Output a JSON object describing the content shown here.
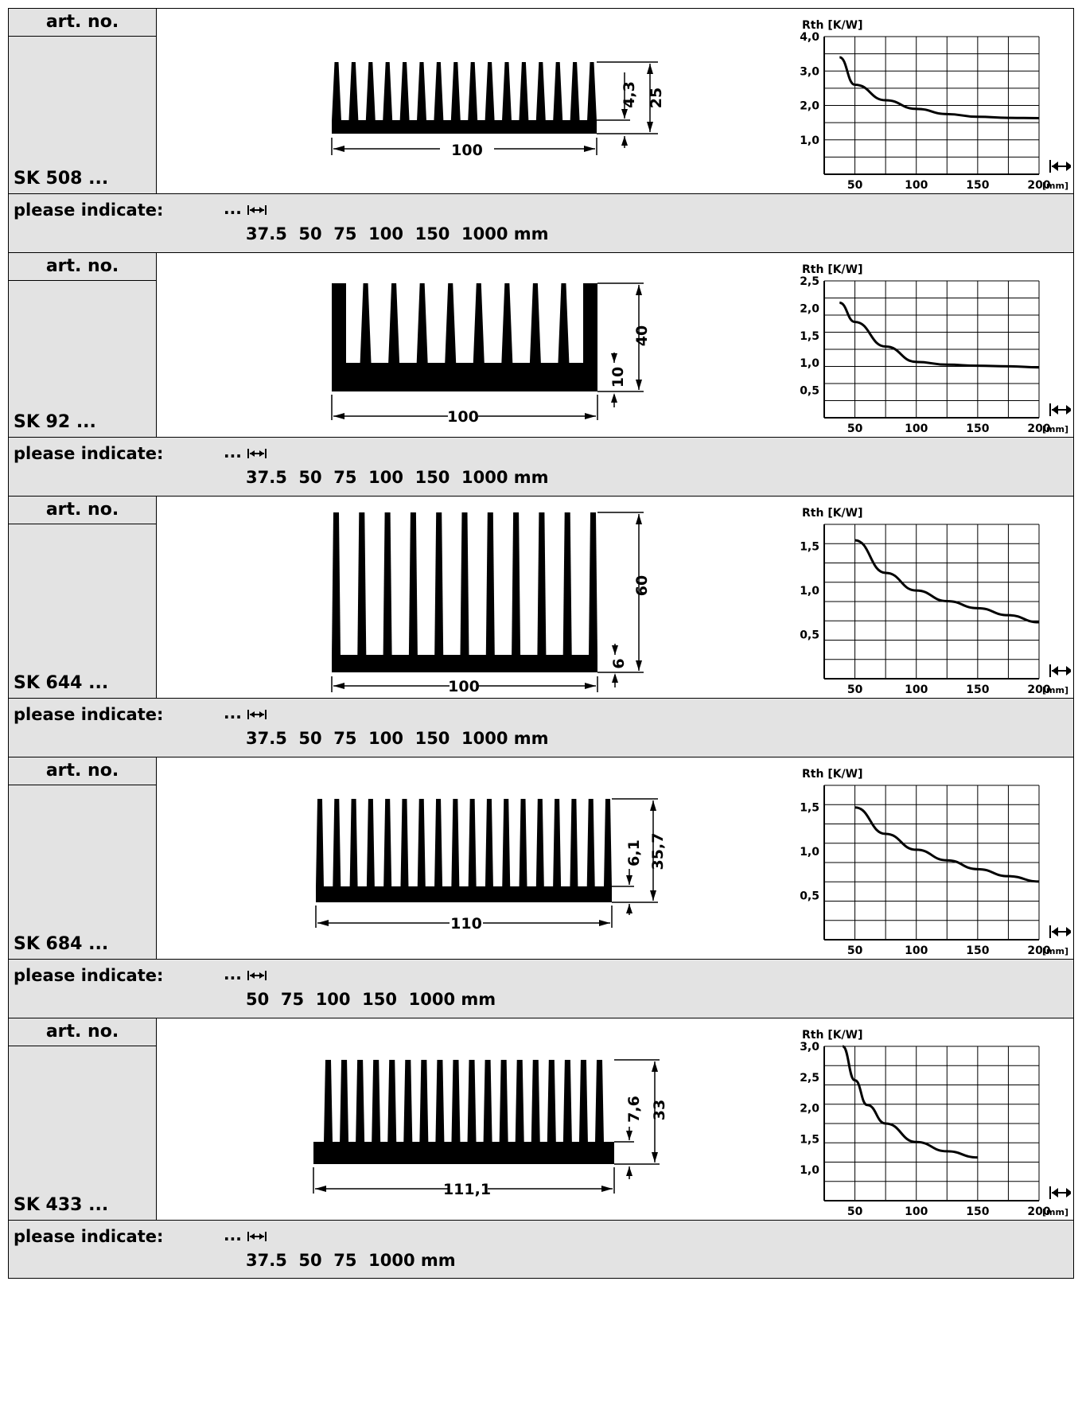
{
  "labels": {
    "art_no": "art. no.",
    "please_indicate": "please indicate:",
    "dots": "..."
  },
  "products": [
    {
      "code": "SK 508 ...",
      "drawing": {
        "fins": 16,
        "width": "100",
        "height": "25",
        "base": "4,3"
      },
      "sizes": "37.5  50  75  100  150  1000 mm",
      "chart_data": {
        "type": "line",
        "ylabel": "Rth [K/W]",
        "xunit": "[mm]",
        "x_ticks": [
          "50",
          "100",
          "150",
          "200"
        ],
        "y_ticks": [
          "1,0",
          "2,0",
          "3,0",
          "4,0"
        ],
        "xlim": [
          25,
          200
        ],
        "ylim": [
          0,
          4.0
        ],
        "series": [
          {
            "x": [
              37.5,
              50,
              75,
              100,
              125,
              150,
              175,
              200
            ],
            "y": [
              3.4,
              2.6,
              2.15,
              1.9,
              1.75,
              1.67,
              1.64,
              1.63
            ]
          }
        ]
      }
    },
    {
      "code": "SK 92 ...",
      "drawing": {
        "fins": 10,
        "width": "100",
        "height": "40",
        "base": "10"
      },
      "sizes": "37.5  50  75  100  150  1000 mm",
      "chart_data": {
        "type": "line",
        "ylabel": "Rth [K/W]",
        "xunit": "[mm]",
        "x_ticks": [
          "50",
          "100",
          "150",
          "200"
        ],
        "y_ticks": [
          "0,5",
          "1,0",
          "1,5",
          "2,0",
          "2,5"
        ],
        "xlim": [
          25,
          200
        ],
        "ylim": [
          0,
          2.5
        ],
        "series": [
          {
            "x": [
              37.5,
              50,
              75,
              100,
              125,
              150,
              175,
              200
            ],
            "y": [
              2.1,
              1.75,
              1.3,
              1.02,
              0.97,
              0.95,
              0.94,
              0.92
            ]
          }
        ]
      }
    },
    {
      "code": "SK 644 ...",
      "drawing": {
        "fins": 11,
        "width": "100",
        "height": "60",
        "base": "6"
      },
      "sizes": "37.5  50  75  100  150  1000 mm",
      "chart_data": {
        "type": "line",
        "ylabel": "Rth [K/W]",
        "xunit": "[mm]",
        "x_ticks": [
          "50",
          "100",
          "150",
          "200"
        ],
        "y_ticks": [
          "0,5",
          "1,0",
          "1,5"
        ],
        "xlim": [
          25,
          200
        ],
        "ylim": [
          0,
          1.75
        ],
        "series": [
          {
            "x": [
              50,
              75,
              100,
              125,
              150,
              175,
              200
            ],
            "y": [
              1.57,
              1.2,
              1.0,
              0.88,
              0.8,
              0.72,
              0.64
            ]
          }
        ]
      }
    },
    {
      "code": "SK 684 ...",
      "drawing": {
        "fins": 18,
        "width": "110",
        "height": "35,7",
        "base": "6,1"
      },
      "sizes": "50  75  100  150  1000 mm",
      "chart_data": {
        "type": "line",
        "ylabel": "Rth [K/W]",
        "xunit": "[mm]",
        "x_ticks": [
          "50",
          "100",
          "150",
          "200"
        ],
        "y_ticks": [
          "0,5",
          "1,0",
          "1,5"
        ],
        "xlim": [
          25,
          200
        ],
        "ylim": [
          0,
          1.75
        ],
        "series": [
          {
            "x": [
              50,
              75,
              100,
              125,
              150,
              175,
              200
            ],
            "y": [
              1.5,
              1.2,
              1.02,
              0.9,
              0.8,
              0.72,
              0.66
            ]
          }
        ]
      }
    },
    {
      "code": "SK 433 ...",
      "drawing": {
        "fins": 18,
        "width": "111,1",
        "height": "33",
        "base": "7,6"
      },
      "sizes": "37.5  50  75  1000 mm",
      "chart_data": {
        "type": "line",
        "ylabel": "Rth [K/W]",
        "xunit": "[mm]",
        "x_ticks": [
          "50",
          "100",
          "150",
          "200"
        ],
        "y_ticks": [
          "1,0",
          "1,5",
          "2,0",
          "2,5",
          "3,0"
        ],
        "xlim": [
          25,
          200
        ],
        "ylim": [
          0.5,
          3.0
        ],
        "series": [
          {
            "x": [
              40,
              50,
              60,
              75,
              100,
              125,
              150
            ],
            "y": [
              3.0,
              2.45,
              2.05,
              1.75,
              1.45,
              1.3,
              1.2
            ]
          }
        ]
      }
    }
  ]
}
